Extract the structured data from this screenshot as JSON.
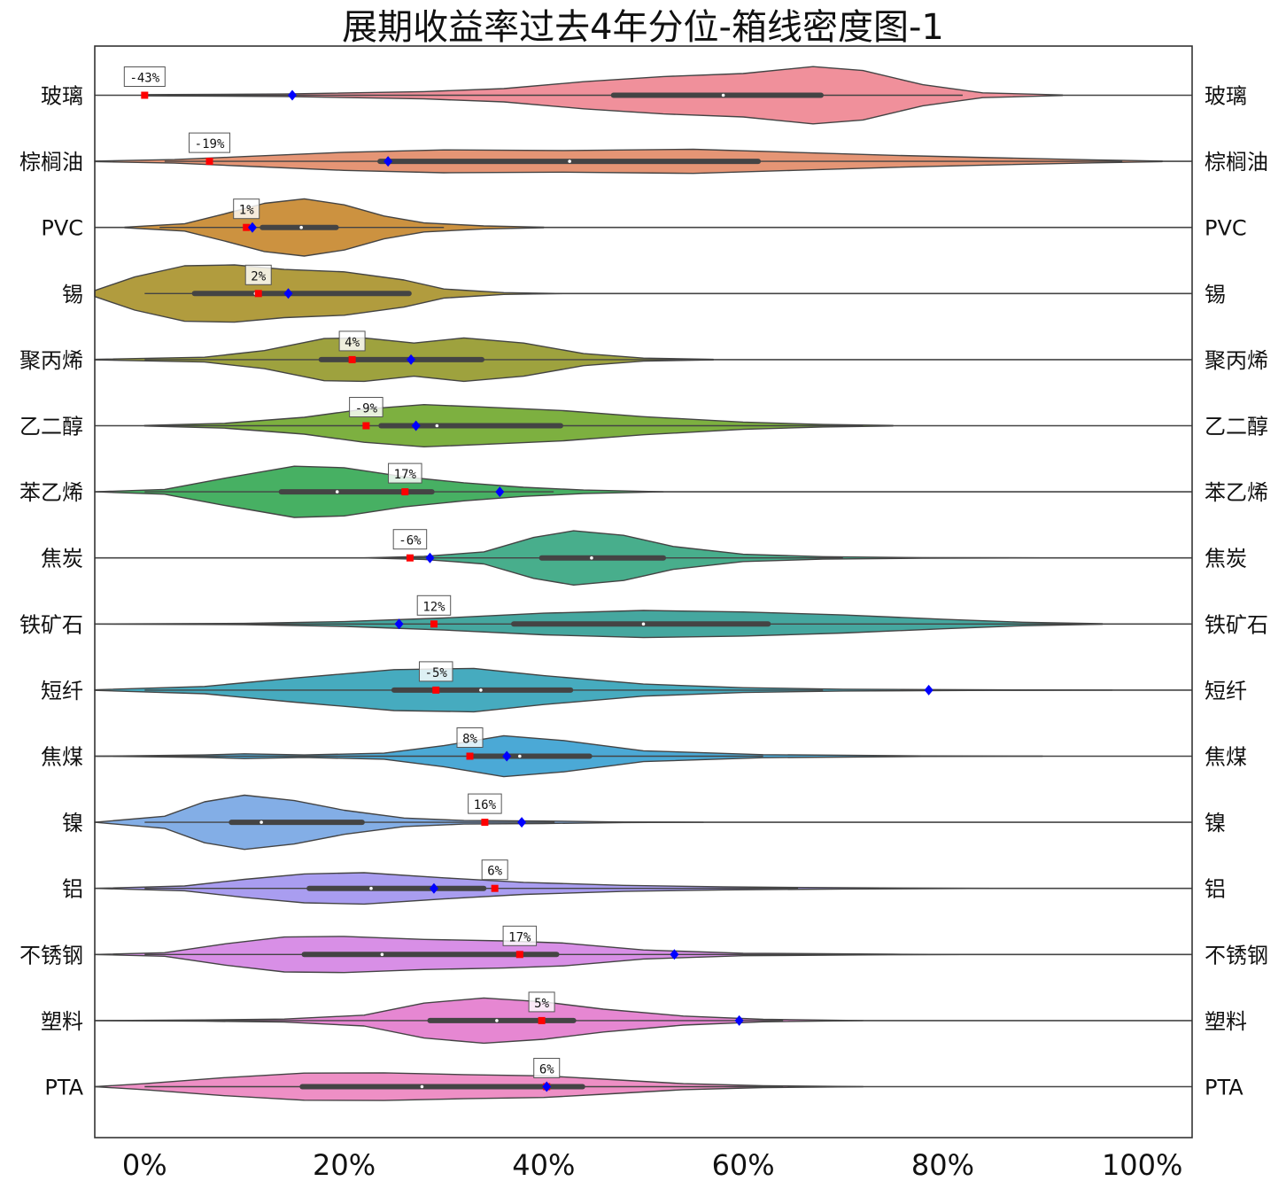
{
  "chart_data": {
    "type": "violin",
    "title": "展期收益率过去4年分位-箱线密度图-1",
    "xlabel": "",
    "ylabel": "",
    "xlim": [
      -0.05,
      1.05
    ],
    "x_ticks": [
      0,
      0.2,
      0.4,
      0.6,
      0.8,
      1.0
    ],
    "x_tick_labels": [
      "0%",
      "20%",
      "40%",
      "60%",
      "80%",
      "100%"
    ],
    "grid": false,
    "legend": "none",
    "marker_colors": {
      "current_percentile": "#ff0000",
      "blue_diamond": "#0000ff"
    },
    "categories": [
      {
        "name": "玻璃",
        "color": "#f0909b",
        "current_percentile": 0.0,
        "current_label": "-43%",
        "blue_diamond": 0.148,
        "box": {
          "q1": 0.47,
          "median": 0.58,
          "q3": 0.678
        },
        "whisker": [
          0.0,
          0.82
        ],
        "density": [
          [
            0.0,
            0.02
          ],
          [
            0.14,
            0.04
          ],
          [
            0.28,
            0.12
          ],
          [
            0.36,
            0.22
          ],
          [
            0.44,
            0.45
          ],
          [
            0.52,
            0.62
          ],
          [
            0.6,
            0.72
          ],
          [
            0.67,
            0.95
          ],
          [
            0.72,
            0.82
          ],
          [
            0.78,
            0.35
          ],
          [
            0.84,
            0.08
          ],
          [
            0.92,
            0.01
          ]
        ]
      },
      {
        "name": "棕榈油",
        "color": "#e59575",
        "current_percentile": 0.065,
        "current_label": "-19%",
        "blue_diamond": 0.244,
        "box": {
          "q1": 0.236,
          "median": 0.426,
          "q3": 0.615
        },
        "whisker": [
          0.02,
          0.98
        ],
        "density": [
          [
            -0.05,
            0.01
          ],
          [
            0.03,
            0.06
          ],
          [
            0.1,
            0.16
          ],
          [
            0.2,
            0.3
          ],
          [
            0.3,
            0.38
          ],
          [
            0.42,
            0.36
          ],
          [
            0.55,
            0.4
          ],
          [
            0.65,
            0.3
          ],
          [
            0.75,
            0.2
          ],
          [
            0.85,
            0.12
          ],
          [
            0.95,
            0.05
          ],
          [
            1.02,
            0.01
          ]
        ]
      },
      {
        "name": "PVC",
        "color": "#cc9240",
        "current_percentile": 0.102,
        "current_label": "1%",
        "blue_diamond": 0.108,
        "box": {
          "q1": 0.118,
          "median": 0.157,
          "q3": 0.192
        },
        "whisker": [
          0.015,
          0.3
        ],
        "density": [
          [
            -0.02,
            0.01
          ],
          [
            0.04,
            0.12
          ],
          [
            0.08,
            0.45
          ],
          [
            0.12,
            0.8
          ],
          [
            0.16,
            0.95
          ],
          [
            0.2,
            0.75
          ],
          [
            0.24,
            0.38
          ],
          [
            0.28,
            0.15
          ],
          [
            0.34,
            0.05
          ],
          [
            0.4,
            0.01
          ]
        ]
      },
      {
        "name": "锡",
        "color": "#b19c3e",
        "current_percentile": 0.114,
        "current_label": "2%",
        "blue_diamond": 0.144,
        "box": {
          "q1": 0.05,
          "median": 0.111,
          "q3": 0.265
        },
        "whisker": [
          0.0,
          0.265
        ],
        "density": [
          [
            -0.05,
            0.1
          ],
          [
            -0.01,
            0.55
          ],
          [
            0.04,
            0.92
          ],
          [
            0.09,
            0.95
          ],
          [
            0.14,
            0.8
          ],
          [
            0.2,
            0.72
          ],
          [
            0.26,
            0.45
          ],
          [
            0.3,
            0.15
          ],
          [
            0.36,
            0.03
          ],
          [
            0.42,
            0.0
          ]
        ]
      },
      {
        "name": "聚丙烯",
        "color": "#9ea23e",
        "current_percentile": 0.208,
        "current_label": "4%",
        "blue_diamond": 0.267,
        "box": {
          "q1": 0.177,
          "median": 0.265,
          "q3": 0.338
        },
        "whisker": [
          0.0,
          0.57
        ],
        "density": [
          [
            -0.05,
            0.01
          ],
          [
            0.06,
            0.08
          ],
          [
            0.12,
            0.3
          ],
          [
            0.18,
            0.7
          ],
          [
            0.22,
            0.72
          ],
          [
            0.27,
            0.55
          ],
          [
            0.32,
            0.72
          ],
          [
            0.38,
            0.55
          ],
          [
            0.44,
            0.2
          ],
          [
            0.5,
            0.05
          ],
          [
            0.57,
            0.01
          ]
        ]
      },
      {
        "name": "乙二醇",
        "color": "#7db040",
        "current_percentile": 0.222,
        "current_label": "-9%",
        "blue_diamond": 0.272,
        "box": {
          "q1": 0.237,
          "median": 0.293,
          "q3": 0.417
        },
        "whisker": [
          0.0,
          0.72
        ],
        "density": [
          [
            0.0,
            0.01
          ],
          [
            0.08,
            0.08
          ],
          [
            0.16,
            0.28
          ],
          [
            0.22,
            0.55
          ],
          [
            0.28,
            0.7
          ],
          [
            0.34,
            0.62
          ],
          [
            0.42,
            0.5
          ],
          [
            0.5,
            0.3
          ],
          [
            0.6,
            0.12
          ],
          [
            0.68,
            0.04
          ],
          [
            0.75,
            0.01
          ]
        ]
      },
      {
        "name": "苯乙烯",
        "color": "#47b063",
        "current_percentile": 0.261,
        "current_label": "17%",
        "blue_diamond": 0.356,
        "box": {
          "q1": 0.137,
          "median": 0.193,
          "q3": 0.288
        },
        "whisker": [
          0.0,
          0.41
        ],
        "density": [
          [
            -0.05,
            0.0
          ],
          [
            0.02,
            0.08
          ],
          [
            0.08,
            0.45
          ],
          [
            0.15,
            0.85
          ],
          [
            0.2,
            0.8
          ],
          [
            0.26,
            0.5
          ],
          [
            0.32,
            0.3
          ],
          [
            0.38,
            0.15
          ],
          [
            0.44,
            0.06
          ],
          [
            0.52,
            0.0
          ]
        ]
      },
      {
        "name": "焦炭",
        "color": "#48ae8c",
        "current_percentile": 0.266,
        "current_label": "-6%",
        "blue_diamond": 0.286,
        "box": {
          "q1": 0.398,
          "median": 0.448,
          "q3": 0.52
        },
        "whisker": [
          0.24,
          0.7
        ],
        "density": [
          [
            0.22,
            0.0
          ],
          [
            0.28,
            0.05
          ],
          [
            0.34,
            0.2
          ],
          [
            0.39,
            0.68
          ],
          [
            0.43,
            0.9
          ],
          [
            0.48,
            0.75
          ],
          [
            0.53,
            0.38
          ],
          [
            0.6,
            0.12
          ],
          [
            0.68,
            0.04
          ],
          [
            0.78,
            0.01
          ],
          [
            0.9,
            0.0
          ],
          [
            1.04,
            0.0
          ]
        ]
      },
      {
        "name": "铁矿石",
        "color": "#45a79f",
        "current_percentile": 0.29,
        "current_label": "12%",
        "blue_diamond": 0.255,
        "box": {
          "q1": 0.37,
          "median": 0.5,
          "q3": 0.625
        },
        "whisker": [
          0.0,
          0.99
        ],
        "density": [
          [
            -0.05,
            0.0
          ],
          [
            0.1,
            0.02
          ],
          [
            0.2,
            0.08
          ],
          [
            0.3,
            0.2
          ],
          [
            0.4,
            0.36
          ],
          [
            0.5,
            0.45
          ],
          [
            0.6,
            0.4
          ],
          [
            0.7,
            0.3
          ],
          [
            0.8,
            0.16
          ],
          [
            0.88,
            0.06
          ],
          [
            0.96,
            0.01
          ]
        ]
      },
      {
        "name": "短纤",
        "color": "#46abbf",
        "current_percentile": 0.292,
        "current_label": "-5%",
        "blue_diamond": 0.786,
        "box": {
          "q1": 0.25,
          "median": 0.337,
          "q3": 0.427
        },
        "whisker": [
          0.0,
          0.68
        ],
        "density": [
          [
            -0.05,
            0.01
          ],
          [
            0.06,
            0.12
          ],
          [
            0.15,
            0.4
          ],
          [
            0.25,
            0.68
          ],
          [
            0.33,
            0.72
          ],
          [
            0.4,
            0.48
          ],
          [
            0.5,
            0.2
          ],
          [
            0.6,
            0.08
          ],
          [
            0.7,
            0.03
          ],
          [
            0.85,
            0.01
          ],
          [
            0.97,
            0.0
          ]
        ]
      },
      {
        "name": "焦煤",
        "color": "#4ba9d6",
        "current_percentile": 0.326,
        "current_label": "8%",
        "blue_diamond": 0.363,
        "box": {
          "q1": 0.33,
          "median": 0.376,
          "q3": 0.446
        },
        "whisker": [
          0.0,
          0.62
        ],
        "density": [
          [
            -0.05,
            0.0
          ],
          [
            0.06,
            0.04
          ],
          [
            0.1,
            0.08
          ],
          [
            0.16,
            0.04
          ],
          [
            0.24,
            0.1
          ],
          [
            0.3,
            0.35
          ],
          [
            0.36,
            0.68
          ],
          [
            0.42,
            0.52
          ],
          [
            0.5,
            0.18
          ],
          [
            0.62,
            0.05
          ],
          [
            0.78,
            0.01
          ],
          [
            0.9,
            0.0
          ]
        ]
      },
      {
        "name": "镍",
        "color": "#83aee6",
        "current_percentile": 0.341,
        "current_label": "16%",
        "blue_diamond": 0.378,
        "box": {
          "q1": 0.087,
          "median": 0.117,
          "q3": 0.218
        },
        "whisker": [
          0.0,
          0.411
        ],
        "density": [
          [
            -0.05,
            0.0
          ],
          [
            0.02,
            0.2
          ],
          [
            0.06,
            0.68
          ],
          [
            0.1,
            0.9
          ],
          [
            0.15,
            0.72
          ],
          [
            0.2,
            0.4
          ],
          [
            0.26,
            0.14
          ],
          [
            0.32,
            0.06
          ],
          [
            0.4,
            0.04
          ],
          [
            0.48,
            0.01
          ],
          [
            0.56,
            0.0
          ]
        ]
      },
      {
        "name": "铝",
        "color": "#a99df0",
        "current_percentile": 0.351,
        "current_label": "6%",
        "blue_diamond": 0.29,
        "box": {
          "q1": 0.165,
          "median": 0.227,
          "q3": 0.34
        },
        "whisker": [
          0.0,
          0.655
        ],
        "density": [
          [
            -0.05,
            0.0
          ],
          [
            0.04,
            0.08
          ],
          [
            0.1,
            0.3
          ],
          [
            0.16,
            0.48
          ],
          [
            0.22,
            0.52
          ],
          [
            0.3,
            0.35
          ],
          [
            0.38,
            0.2
          ],
          [
            0.48,
            0.1
          ],
          [
            0.58,
            0.05
          ],
          [
            0.7,
            0.02
          ],
          [
            0.85,
            0.0
          ]
        ]
      },
      {
        "name": "不锈钢",
        "color": "#d88fe6",
        "current_percentile": 0.376,
        "current_label": "17%",
        "blue_diamond": 0.531,
        "box": {
          "q1": 0.16,
          "median": 0.238,
          "q3": 0.413
        },
        "whisker": [
          0.0,
          0.77
        ],
        "density": [
          [
            -0.05,
            0.0
          ],
          [
            0.02,
            0.06
          ],
          [
            0.08,
            0.35
          ],
          [
            0.14,
            0.58
          ],
          [
            0.2,
            0.6
          ],
          [
            0.28,
            0.5
          ],
          [
            0.36,
            0.45
          ],
          [
            0.42,
            0.38
          ],
          [
            0.5,
            0.15
          ],
          [
            0.6,
            0.04
          ],
          [
            0.75,
            0.01
          ],
          [
            0.82,
            0.0
          ]
        ]
      },
      {
        "name": "塑料",
        "color": "#e687d2",
        "current_percentile": 0.398,
        "current_label": "5%",
        "blue_diamond": 0.596,
        "box": {
          "q1": 0.286,
          "median": 0.353,
          "q3": 0.43
        },
        "whisker": [
          0.0,
          0.64
        ],
        "density": [
          [
            -0.05,
            0.0
          ],
          [
            0.06,
            0.02
          ],
          [
            0.14,
            0.05
          ],
          [
            0.22,
            0.18
          ],
          [
            0.28,
            0.58
          ],
          [
            0.34,
            0.75
          ],
          [
            0.4,
            0.62
          ],
          [
            0.46,
            0.38
          ],
          [
            0.54,
            0.15
          ],
          [
            0.62,
            0.04
          ],
          [
            0.72,
            0.0
          ]
        ]
      },
      {
        "name": "PTA",
        "color": "#ee8fc5",
        "current_percentile": 0.403,
        "current_label": "6%",
        "blue_diamond": 0.403,
        "box": {
          "q1": 0.158,
          "median": 0.278,
          "q3": 0.439
        },
        "whisker": [
          0.0,
          0.64
        ],
        "density": [
          [
            -0.05,
            0.0
          ],
          [
            0.0,
            0.1
          ],
          [
            0.08,
            0.3
          ],
          [
            0.16,
            0.45
          ],
          [
            0.24,
            0.46
          ],
          [
            0.32,
            0.4
          ],
          [
            0.4,
            0.36
          ],
          [
            0.46,
            0.25
          ],
          [
            0.54,
            0.1
          ],
          [
            0.62,
            0.03
          ],
          [
            0.72,
            0.0
          ]
        ]
      }
    ]
  }
}
